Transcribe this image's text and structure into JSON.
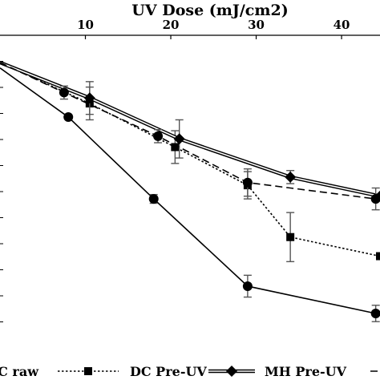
{
  "chart_data": {
    "type": "line",
    "title": "",
    "xlabel": "UV Dose (mJ/cm2)",
    "ylabel": "",
    "x_axis_position": "top",
    "xticks": [
      10,
      20,
      30,
      40
    ],
    "xlim": [
      0,
      44.5
    ],
    "ylim": [
      -5.6,
      0
    ],
    "y_gridlines": false,
    "legend_position": "bottom",
    "series": [
      {
        "name": "DC raw",
        "color": "#000000",
        "line_style": "solid",
        "marker": "circle",
        "x": [
          0,
          8,
          18,
          29,
          44
        ],
        "y": [
          -0.6,
          -1.5,
          -3.0,
          -4.6,
          -5.1
        ],
        "err": [
          0,
          0,
          0.08,
          0.2,
          0.15
        ]
      },
      {
        "name": "DC Pre-UV",
        "color": "#000000",
        "line_style": "dotted",
        "marker": "square",
        "x": [
          0,
          10.5,
          20.5,
          29,
          34,
          44.5
        ],
        "y": [
          -0.5,
          -1.25,
          -2.05,
          -2.75,
          -3.7,
          -4.05
        ],
        "err": [
          0,
          0.3,
          0.3,
          0.25,
          0.45,
          0
        ]
      },
      {
        "name": "MH Pre-UV",
        "color": "#000000",
        "line_style": "solid",
        "marker": "diamond",
        "x": [
          0,
          10.5,
          21,
          34,
          44.5
        ],
        "y": [
          -0.5,
          -1.15,
          -1.9,
          -2.6,
          -2.95
        ],
        "err": [
          0,
          0.3,
          0.35,
          0.12,
          0
        ]
      },
      {
        "name": "",
        "color": "#000000",
        "line_style": "dashed",
        "marker": "circle",
        "x": [
          0,
          7.5,
          18.5,
          29,
          44
        ],
        "y": [
          -0.5,
          -1.05,
          -1.85,
          -2.7,
          -3.0
        ],
        "err": [
          0,
          0.12,
          0.12,
          0.25,
          0.2
        ]
      }
    ]
  }
}
